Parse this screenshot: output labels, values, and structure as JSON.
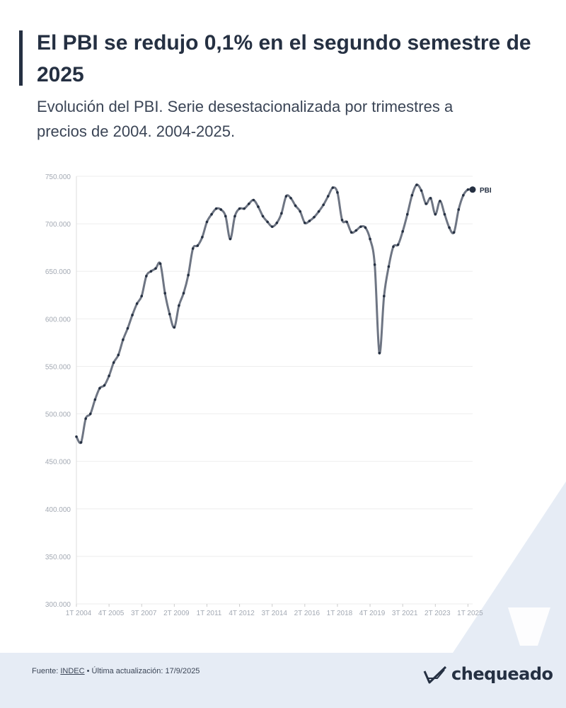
{
  "header": {
    "title": "El PBI se redujo 0,1% en el segundo semestre de 2025",
    "subtitle": "Evolución del PBI. Serie desestacionalizada por trimestres a precios de 2004. 2004-2025."
  },
  "footer": {
    "source_prefix": "Fuente: ",
    "source_link": "INDEC",
    "source_suffix": " • Última actualización: 17/9/2025",
    "logo_text": "chequeado"
  },
  "colors": {
    "line": "#6e7583",
    "point": "#253042",
    "grid": "#eeeeee",
    "tick_text": "#a3a9b3",
    "accent": "#253042",
    "footer_bg": "#e6ecf5"
  },
  "chart_data": {
    "type": "line",
    "title": "",
    "xlabel": "",
    "ylabel": "",
    "ylim": [
      300000,
      750000
    ],
    "y_ticks": [
      "750.000",
      "700.000",
      "650.000",
      "600.000",
      "550.000",
      "500.000",
      "450.000",
      "400.000",
      "350.000",
      "300.000"
    ],
    "y_tick_values": [
      750000,
      700000,
      650000,
      600000,
      550000,
      500000,
      450000,
      400000,
      350000,
      300000
    ],
    "x_ticks": [
      {
        "label": "1T 2004",
        "index": 0
      },
      {
        "label": "4T 2005",
        "index": 7
      },
      {
        "label": "3T 2007",
        "index": 14
      },
      {
        "label": "2T 2009",
        "index": 21
      },
      {
        "label": "1T 2011",
        "index": 28
      },
      {
        "label": "4T 2012",
        "index": 35
      },
      {
        "label": "3T 2014",
        "index": 42
      },
      {
        "label": "2T 2016",
        "index": 49
      },
      {
        "label": "1T 2018",
        "index": 56
      },
      {
        "label": "4T 2019",
        "index": 63
      },
      {
        "label": "3T 2021",
        "index": 70
      },
      {
        "label": "2T 2023",
        "index": 77
      },
      {
        "label": "1T 2025",
        "index": 84
      }
    ],
    "grid": true,
    "legend": "end-of-line",
    "series": [
      {
        "name": "PBI",
        "start": "1T 2004",
        "values": [
          476000,
          470000,
          495000,
          500000,
          515000,
          527000,
          530000,
          540000,
          554000,
          562000,
          578000,
          590000,
          604000,
          616000,
          624000,
          645000,
          650000,
          653000,
          658000,
          627000,
          605000,
          591000,
          614000,
          627000,
          646000,
          674000,
          677000,
          686000,
          702000,
          710000,
          716000,
          715000,
          708000,
          684000,
          708000,
          716000,
          716000,
          721000,
          725000,
          718000,
          708000,
          702000,
          697000,
          701000,
          711000,
          729000,
          727000,
          719000,
          713000,
          701000,
          703000,
          707000,
          713000,
          720000,
          729000,
          738000,
          733000,
          704000,
          702000,
          691000,
          693000,
          697000,
          696000,
          684000,
          657000,
          564000,
          624000,
          655000,
          676000,
          678000,
          692000,
          710000,
          730000,
          741000,
          735000,
          721000,
          727000,
          710000,
          724000,
          710000,
          696000,
          691000,
          715000,
          730000,
          736000,
          736000
        ]
      }
    ]
  }
}
